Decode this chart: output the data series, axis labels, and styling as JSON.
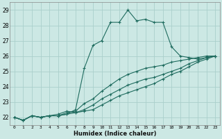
{
  "background_color": "#cce8e4",
  "grid_color": "#aacfcb",
  "line_color": "#1e6b5e",
  "xlabel": "Humidex (Indice chaleur)",
  "xlim": [
    -0.5,
    23.5
  ],
  "ylim": [
    21.5,
    29.5
  ],
  "yticks": [
    22,
    23,
    24,
    25,
    26,
    27,
    28,
    29
  ],
  "xticks": [
    0,
    1,
    2,
    3,
    4,
    5,
    6,
    7,
    8,
    9,
    10,
    11,
    12,
    13,
    14,
    15,
    16,
    17,
    18,
    19,
    20,
    21,
    22,
    23
  ],
  "series1_x": [
    0,
    1,
    2,
    3,
    4,
    5,
    6,
    7,
    8,
    9,
    10,
    11,
    12,
    13,
    14,
    15,
    16,
    17,
    18,
    19,
    20,
    21,
    22,
    23
  ],
  "series1_y": [
    22.0,
    21.8,
    22.1,
    22.0,
    22.1,
    22.1,
    22.2,
    22.5,
    25.2,
    26.7,
    27.0,
    28.2,
    28.2,
    29.0,
    28.3,
    28.4,
    28.2,
    28.2,
    26.6,
    26.0,
    25.9,
    25.8,
    25.9,
    26.0
  ],
  "series2_x": [
    0,
    1,
    2,
    3,
    4,
    5,
    6,
    7,
    8,
    9,
    10,
    11,
    12,
    13,
    14,
    15,
    16,
    17,
    18,
    19,
    20,
    21,
    22,
    23
  ],
  "series2_y": [
    22.0,
    21.8,
    22.1,
    22.0,
    22.1,
    22.1,
    22.3,
    22.4,
    22.9,
    23.2,
    23.7,
    24.1,
    24.5,
    24.8,
    25.0,
    25.2,
    25.3,
    25.4,
    25.6,
    25.7,
    25.8,
    25.9,
    26.0,
    26.0
  ],
  "series3_x": [
    0,
    1,
    2,
    3,
    4,
    5,
    6,
    7,
    8,
    9,
    10,
    11,
    12,
    13,
    14,
    15,
    16,
    17,
    18,
    19,
    20,
    21,
    22,
    23
  ],
  "series3_y": [
    22.0,
    21.8,
    22.1,
    22.0,
    22.1,
    22.2,
    22.4,
    22.3,
    22.5,
    22.8,
    23.2,
    23.5,
    23.8,
    24.1,
    24.3,
    24.5,
    24.6,
    24.8,
    25.0,
    25.2,
    25.5,
    25.7,
    25.9,
    26.0
  ],
  "series4_x": [
    0,
    1,
    2,
    3,
    4,
    5,
    6,
    7,
    8,
    9,
    10,
    11,
    12,
    13,
    14,
    15,
    16,
    17,
    18,
    19,
    20,
    21,
    22,
    23
  ],
  "series4_y": [
    22.0,
    21.8,
    22.1,
    22.0,
    22.1,
    22.1,
    22.2,
    22.3,
    22.4,
    22.5,
    22.8,
    23.1,
    23.4,
    23.6,
    23.8,
    24.0,
    24.2,
    24.5,
    24.8,
    25.0,
    25.3,
    25.6,
    25.8,
    26.0
  ]
}
